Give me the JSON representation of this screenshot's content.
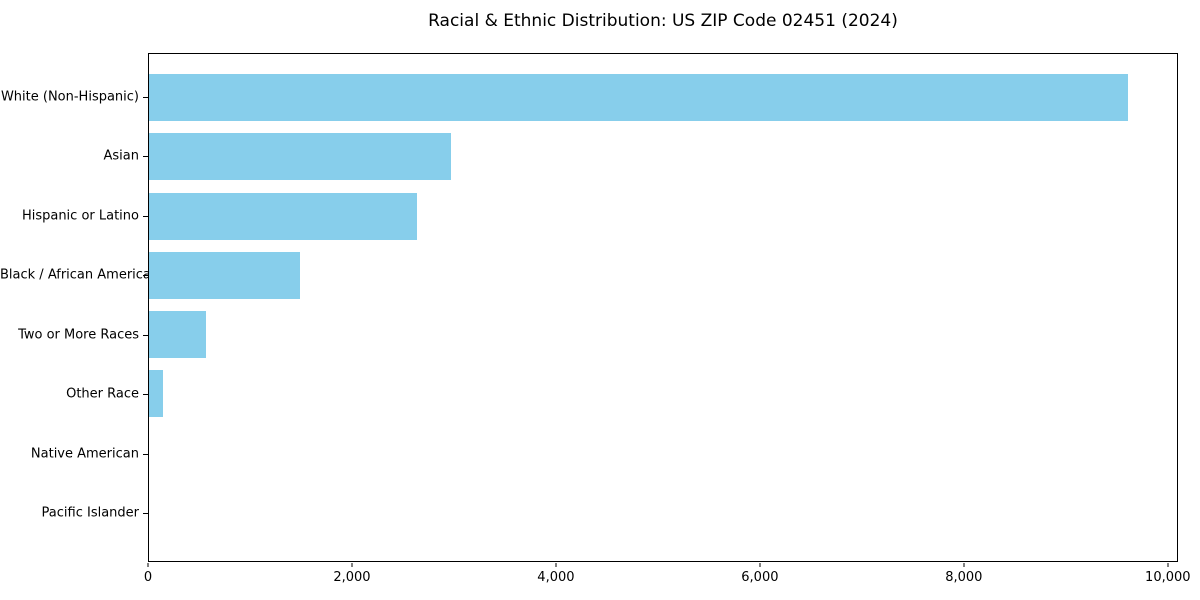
{
  "chart_data": {
    "type": "bar",
    "orientation": "horizontal",
    "title": "Racial & Ethnic Distribution: US ZIP Code 02451 (2024)",
    "categories": [
      "White (Non-Hispanic)",
      "Asian",
      "Hispanic or Latino",
      "Black / African American",
      "Two or More Races",
      "Other Race",
      "Native American",
      "Pacific Islander"
    ],
    "values": [
      9620,
      2970,
      2630,
      1480,
      560,
      135,
      0,
      0
    ],
    "xlabel": "",
    "ylabel": "",
    "xlim": [
      0,
      10100
    ],
    "x_ticks": [
      0,
      2000,
      4000,
      6000,
      8000,
      10000
    ],
    "x_tick_labels": [
      "0",
      "2,000",
      "4,000",
      "6,000",
      "8,000",
      "10,000"
    ],
    "grid": false,
    "legend": "none",
    "bar_color": "#87CEEB",
    "spine_color": "#000000",
    "background_color": "#ffffff"
  }
}
